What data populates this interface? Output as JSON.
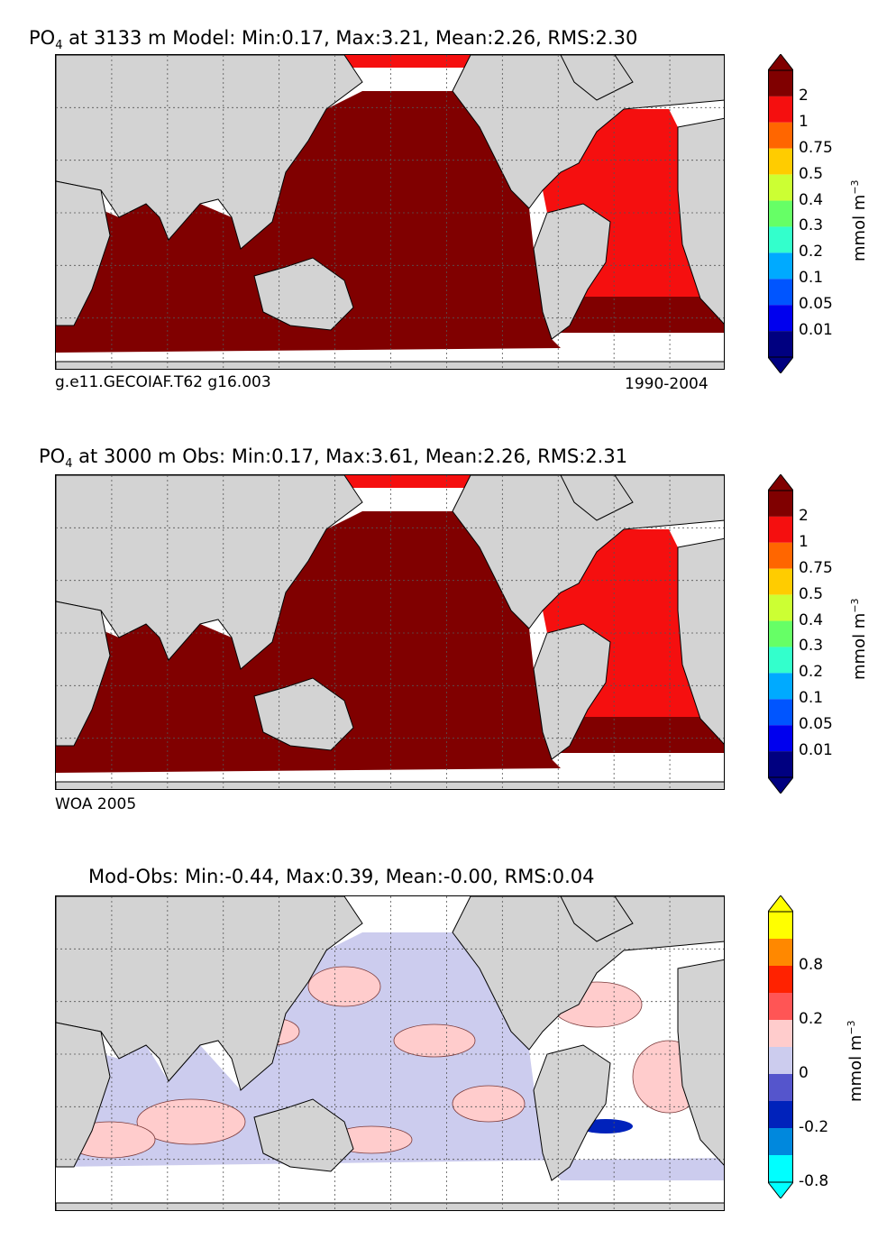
{
  "panels": [
    {
      "title_prefix": "PO",
      "title_sub": "4",
      "title_suffix": " at 3133 m Model: Min:0.17, Max:3.21, Mean:2.26, RMS:2.30",
      "caption_left": "g.e11.GECOIAF.T62 g16.003",
      "caption_right": "1990-2004",
      "unit": "mmol m",
      "unit_sup": "−3",
      "colorbar_labels": [
        "2",
        "1",
        "0.75",
        "0.5",
        "0.4",
        "0.3",
        "0.2",
        "0.1",
        "0.05",
        "0.01"
      ],
      "colorbar_colors": [
        "#800000",
        "#f50f0f",
        "#ff6600",
        "#ffcc00",
        "#ccff33",
        "#66ff66",
        "#33ffcc",
        "#00aaff",
        "#0055ff",
        "#0000ee",
        "#000080"
      ],
      "dominant_colors": {
        "pacific_indian": "#800000",
        "atlantic": "#f50f0f",
        "missing": "#ffffff",
        "land": "#d3d3d3"
      }
    },
    {
      "title_prefix": "PO",
      "title_sub": "4",
      "title_suffix": " at 3000 m Obs: Min:0.17, Max:3.61, Mean:2.26, RMS:2.31",
      "caption_left": "WOA 2005",
      "caption_right": "",
      "unit": "mmol m",
      "unit_sup": "−3",
      "colorbar_labels": [
        "2",
        "1",
        "0.75",
        "0.5",
        "0.4",
        "0.3",
        "0.2",
        "0.1",
        "0.05",
        "0.01"
      ],
      "colorbar_colors": [
        "#800000",
        "#f50f0f",
        "#ff6600",
        "#ffcc00",
        "#ccff33",
        "#66ff66",
        "#33ffcc",
        "#00aaff",
        "#0055ff",
        "#0000ee",
        "#000080"
      ],
      "dominant_colors": {
        "pacific_indian": "#800000",
        "atlantic": "#f50f0f",
        "missing": "#ffffff",
        "land": "#d3d3d3"
      }
    },
    {
      "title_prefix": "",
      "title_sub": "",
      "title_suffix": "Mod-Obs: Min:-0.44, Max:0.39, Mean:-0.00, RMS:0.04",
      "caption_left": "",
      "caption_right": "",
      "unit": "mmol m",
      "unit_sup": "−3",
      "colorbar_labels": [
        "0.8",
        "0.2",
        "0",
        "-0.2",
        "-0.8"
      ],
      "colorbar_colors": [
        "#ffff00",
        "#ff8800",
        "#ff2200",
        "#ff5555",
        "#ffcccc",
        "#ccccee",
        "#5555cc",
        "#0022bb",
        "#0088dd",
        "#00ffff"
      ],
      "dominant_colors": {
        "positive": "#ffcccc",
        "negative": "#ccccee",
        "missing": "#ffffff",
        "land": "#d3d3d3"
      }
    }
  ]
}
